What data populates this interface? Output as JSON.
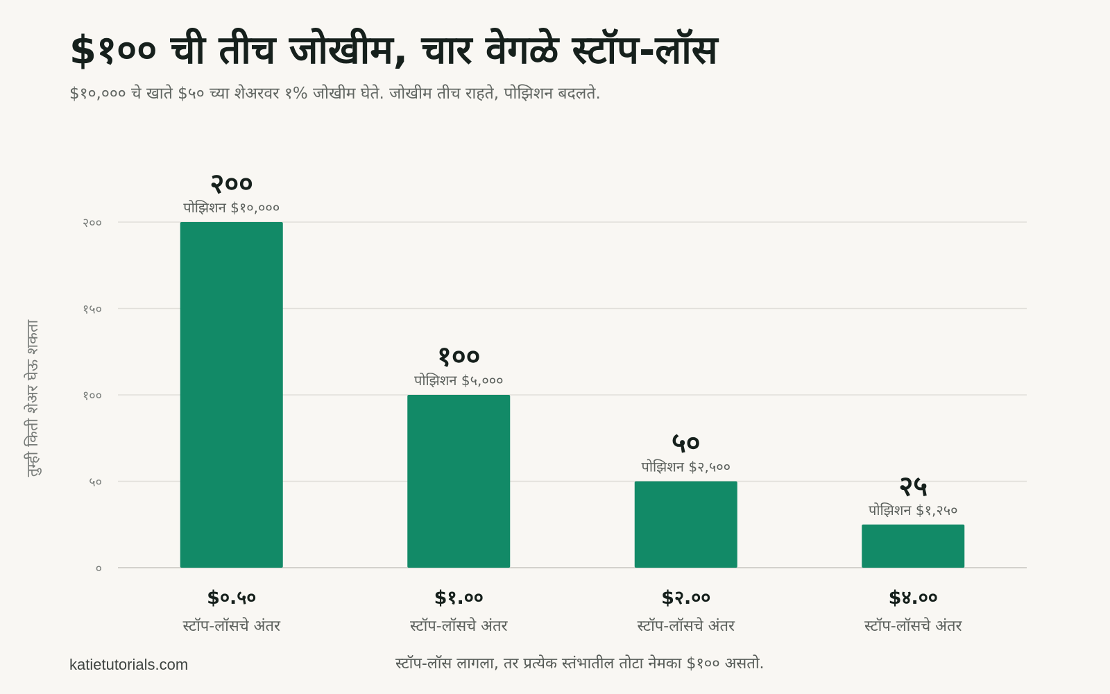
{
  "header": {
    "title": "$१०० ची तीच जोखीम, चार वेगळे स्टॉप-लॉस",
    "subtitle": "$१०,००० चे खाते $५० च्या शेअरवर १% जोखीम घेते. जोखीम तीच राहते, पोझिशन बदलते."
  },
  "footer": {
    "source": "katietutorials.com",
    "note": "स्टॉप-लॉस लागला, तर प्रत्येक स्तंभातील तोटा नेमका $१०० असतो."
  },
  "colors": {
    "bar": "#128a67",
    "grid": "#e1dfda",
    "baseline": "#d3d1cc",
    "value_label": "#16201c",
    "position_label": "#5b605c",
    "tick_label": "#7a7e7b",
    "category_label": "#16201c",
    "category_sub": "#5b605c",
    "background": "#f9f7f3"
  },
  "chart_data": {
    "type": "bar",
    "ylabel": "तुम्ही किती शेअर घेऊ शकता",
    "ylim": [
      0,
      200
    ],
    "yticks": [
      0,
      50,
      100,
      150,
      200
    ],
    "ytick_labels": [
      "०",
      "५०",
      "१००",
      "१५०",
      "२००"
    ],
    "grid": true,
    "categories": [
      "$०.५०",
      "$१.००",
      "$२.००",
      "$४.००"
    ],
    "category_sublabels": [
      "स्टॉप-लॉसचे अंतर",
      "स्टॉप-लॉसचे अंतर",
      "स्टॉप-लॉसचे अंतर",
      "स्टॉप-लॉसचे अंतर"
    ],
    "values": [
      200,
      100,
      50,
      25
    ],
    "value_labels": [
      "२००",
      "१००",
      "५०",
      "२५"
    ],
    "position_labels": [
      "पोझिशन $१०,०००",
      "पोझिशन $५,०००",
      "पोझिशन $२,५००",
      "पोझिशन $१,२५०"
    ]
  }
}
